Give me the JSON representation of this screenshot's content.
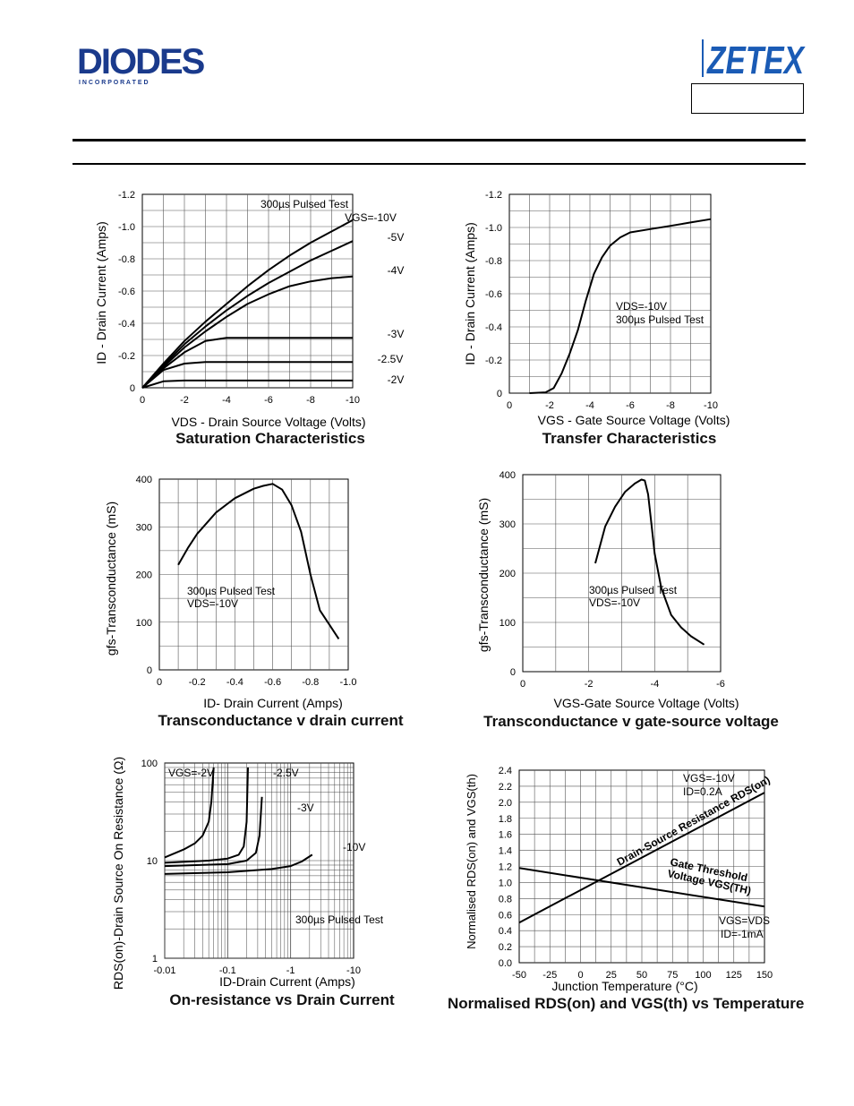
{
  "header": {
    "diodes_logo": "DIODES",
    "diodes_sub": "I N C O R P O R A T E D",
    "zetex_logo": "ZETEX"
  },
  "charts": {
    "saturation": {
      "title": "Saturation Characteristics",
      "xlabel": "VDS - Drain Source Voltage (Volts)",
      "ylabel": "ID - Drain Current (Amps)",
      "xticks": [
        "0",
        "-2",
        "-4",
        "-6",
        "-8",
        "-10"
      ],
      "yticks": [
        "0",
        "-0.2",
        "-0.4",
        "-0.6",
        "-0.8",
        "-1.0",
        "-1.2"
      ],
      "note1": "300µs Pulsed Test",
      "note2": "VGS=-10V",
      "curve_labels": [
        "-5V",
        "-4V",
        "-3V",
        "-2.5V",
        "-2V"
      ]
    },
    "transfer": {
      "title": "Transfer Characteristics",
      "xlabel": "VGS - Gate Source Voltage (Volts)",
      "ylabel": "ID - Drain Current (Amps)",
      "xticks": [
        "0",
        "-2",
        "-4",
        "-6",
        "-8",
        "-10"
      ],
      "yticks": [
        "0",
        "-0.2",
        "-0.4",
        "-0.6",
        "-0.8",
        "-1.0",
        "-1.2"
      ],
      "note1": "VDS=-10V",
      "note2": "300µs Pulsed Test"
    },
    "gfs_id": {
      "title": "Transconductance v drain current",
      "xlabel": "ID- Drain Current (Amps)",
      "ylabel": "gfs-Transconductance (mS)",
      "xticks": [
        "0",
        "-0.2",
        "-0.4",
        "-0.6",
        "-0.8",
        "-1.0"
      ],
      "yticks": [
        "0",
        "100",
        "200",
        "300",
        "400"
      ],
      "note1": "300µs Pulsed Test",
      "note2": "VDS=-10V"
    },
    "gfs_vgs": {
      "title": "Transconductance v gate-source voltage",
      "xlabel": "VGS-Gate Source Voltage (Volts)",
      "ylabel": "gfs-Transconductance (mS)",
      "xticks": [
        "0",
        "-2",
        "-4",
        "-6"
      ],
      "yticks": [
        "0",
        "100",
        "200",
        "300",
        "400"
      ],
      "note1": "300µs Pulsed Test",
      "note2": "VDS=-10V"
    },
    "rds": {
      "title": "On-resistance vs Drain Current",
      "xlabel": "ID-Drain Current (Amps)",
      "ylabel": "RDS(on)-Drain Source On Resistance  (Ω)",
      "xticks": [
        "-0.01",
        "-0.1",
        "-1",
        "-10"
      ],
      "yticks": [
        "1",
        "10",
        "100"
      ],
      "note1": "300µs Pulsed Test",
      "curve_labels": [
        "VGS=-2V",
        "-2.5V",
        "-3V",
        "-10V"
      ]
    },
    "temp": {
      "title": "Normalised RDS(on) and VGS(th) vs Temperature",
      "xlabel": "Junction Temperature (°C)",
      "ylabel": "Normalised RDS(on) and VGS(th)",
      "xticks": [
        "-50",
        "-25",
        "0",
        "25",
        "50",
        "75",
        "100",
        "125",
        "150"
      ],
      "yticks": [
        "0.0",
        "0.2",
        "0.4",
        "0.6",
        "0.8",
        "1.0",
        "1.2",
        "1.4",
        "1.6",
        "1.8",
        "2.0",
        "2.2",
        "2.4"
      ],
      "note1": "VGS=-10V",
      "note2": "ID=0.2A",
      "note3": "VGS=VDS",
      "note4": "ID=-1mA",
      "line1_label": "Drain-Source Resistance RDS(on)",
      "line2_label_a": "Gate Threshold",
      "line2_label_b": "Voltage VGS(TH)"
    }
  },
  "chart_data": [
    {
      "type": "line",
      "title": "Saturation Characteristics",
      "xlabel": "VDS - Drain Source Voltage (Volts)",
      "ylabel": "ID - Drain Current (Amps)",
      "xlim": [
        0,
        -10
      ],
      "ylim": [
        0,
        -1.2
      ],
      "grid": true,
      "series": [
        {
          "name": "VGS=-10V",
          "x": [
            0,
            -1,
            -2,
            -3,
            -4,
            -5,
            -6,
            -7,
            -8,
            -9,
            -10
          ],
          "y": [
            0,
            -0.15,
            -0.29,
            -0.41,
            -0.52,
            -0.63,
            -0.73,
            -0.82,
            -0.9,
            -0.97,
            -1.04
          ]
        },
        {
          "name": "-5V",
          "x": [
            0,
            -1,
            -2,
            -3,
            -4,
            -5,
            -6,
            -7,
            -8,
            -9,
            -10
          ],
          "y": [
            0,
            -0.14,
            -0.27,
            -0.38,
            -0.48,
            -0.57,
            -0.65,
            -0.72,
            -0.79,
            -0.85,
            -0.91
          ]
        },
        {
          "name": "-4V",
          "x": [
            0,
            -1,
            -2,
            -3,
            -4,
            -5,
            -6,
            -7,
            -8,
            -9,
            -10
          ],
          "y": [
            0,
            -0.13,
            -0.25,
            -0.35,
            -0.44,
            -0.52,
            -0.58,
            -0.63,
            -0.66,
            -0.68,
            -0.69
          ]
        },
        {
          "name": "-3V",
          "x": [
            0,
            -1,
            -2,
            -3,
            -4,
            -5,
            -6,
            -7,
            -8,
            -9,
            -10
          ],
          "y": [
            0,
            -0.12,
            -0.22,
            -0.29,
            -0.31,
            -0.31,
            -0.31,
            -0.31,
            -0.31,
            -0.31,
            -0.31
          ]
        },
        {
          "name": "-2.5V",
          "x": [
            0,
            -1,
            -2,
            -3,
            -4,
            -5,
            -6,
            -7,
            -8,
            -9,
            -10
          ],
          "y": [
            0,
            -0.11,
            -0.15,
            -0.16,
            -0.16,
            -0.16,
            -0.16,
            -0.16,
            -0.16,
            -0.16,
            -0.16
          ]
        },
        {
          "name": "-2V",
          "x": [
            0,
            -1,
            -2,
            -3,
            -4,
            -5,
            -6,
            -7,
            -8,
            -9,
            -10
          ],
          "y": [
            0,
            -0.04,
            -0.045,
            -0.045,
            -0.045,
            -0.045,
            -0.045,
            -0.045,
            -0.045,
            -0.045,
            -0.045
          ]
        }
      ]
    },
    {
      "type": "line",
      "title": "Transfer Characteristics",
      "xlabel": "VGS - Gate Source Voltage (Volts)",
      "ylabel": "ID - Drain Current (Amps)",
      "xlim": [
        0,
        -10
      ],
      "ylim": [
        0,
        -1.2
      ],
      "grid": true,
      "series": [
        {
          "x": [
            -1.0,
            -1.8,
            -2.2,
            -2.6,
            -3.0,
            -3.4,
            -3.8,
            -4.2,
            -4.6,
            -5.0,
            -5.5,
            -6.0,
            -7.0,
            -8.0,
            -9.0,
            -10.0
          ],
          "y": [
            0,
            -0.005,
            -0.03,
            -0.12,
            -0.24,
            -0.38,
            -0.56,
            -0.72,
            -0.82,
            -0.89,
            -0.94,
            -0.97,
            -0.99,
            -1.01,
            -1.03,
            -1.05
          ]
        }
      ]
    },
    {
      "type": "line",
      "title": "Transconductance v drain current",
      "xlabel": "ID- Drain Current (Amps)",
      "ylabel": "gfs-Transconductance (mS)",
      "xlim": [
        0,
        -1.0
      ],
      "ylim": [
        0,
        400
      ],
      "grid": true,
      "series": [
        {
          "x": [
            -0.1,
            -0.15,
            -0.2,
            -0.3,
            -0.4,
            -0.5,
            -0.55,
            -0.6,
            -0.65,
            -0.7,
            -0.75,
            -0.8,
            -0.85,
            -0.9,
            -0.95
          ],
          "y": [
            220,
            255,
            285,
            330,
            360,
            380,
            386,
            390,
            378,
            345,
            290,
            200,
            125,
            95,
            65
          ]
        }
      ]
    },
    {
      "type": "line",
      "title": "Transconductance v gate-source voltage",
      "xlabel": "VGS-Gate Source Voltage (Volts)",
      "ylabel": "gfs-Transconductance (mS)",
      "xlim": [
        0,
        -6
      ],
      "ylim": [
        0,
        400
      ],
      "grid": true,
      "series": [
        {
          "x": [
            -2.2,
            -2.5,
            -2.8,
            -3.1,
            -3.4,
            -3.6,
            -3.7,
            -3.8,
            -3.9,
            -4.0,
            -4.2,
            -4.5,
            -4.8,
            -5.1,
            -5.5
          ],
          "y": [
            220,
            295,
            335,
            365,
            382,
            390,
            388,
            360,
            300,
            240,
            170,
            115,
            90,
            72,
            55
          ]
        }
      ]
    },
    {
      "type": "line",
      "title": "On-resistance vs Drain Current",
      "xlabel": "ID-Drain Current (Amps)",
      "ylabel": "RDS(on)-Drain Source On Resistance  (Ω)",
      "xlim": [
        -0.01,
        -10
      ],
      "ylim": [
        1,
        100
      ],
      "log_x": true,
      "log_y": true,
      "grid": true,
      "series": [
        {
          "name": "VGS=-2V",
          "x": [
            -0.01,
            -0.02,
            -0.03,
            -0.04,
            -0.05,
            -0.055,
            -0.06
          ],
          "y": [
            10.8,
            13,
            15,
            18,
            25,
            40,
            90
          ]
        },
        {
          "name": "-2.5V",
          "x": [
            -0.01,
            -0.05,
            -0.1,
            -0.15,
            -0.18,
            -0.2,
            -0.21
          ],
          "y": [
            9.5,
            10,
            10.5,
            11.5,
            14,
            25,
            90
          ]
        },
        {
          "name": "-3V",
          "x": [
            -0.01,
            -0.1,
            -0.2,
            -0.28,
            -0.32,
            -0.35
          ],
          "y": [
            8.8,
            9.2,
            10,
            12,
            18,
            45
          ]
        },
        {
          "name": "-10V",
          "x": [
            -0.01,
            -0.1,
            -0.5,
            -1,
            -1.5,
            -2.2
          ],
          "y": [
            7.3,
            7.6,
            8.2,
            8.8,
            9.8,
            11.5
          ]
        }
      ]
    },
    {
      "type": "line",
      "title": "Normalised RDS(on) and VGS(th) vs Temperature",
      "xlabel": "Junction Temperature (°C)",
      "ylabel": "Normalised RDS(on) and VGS(th)",
      "xlim": [
        -50,
        150
      ],
      "ylim": [
        0.0,
        2.4
      ],
      "grid": true,
      "series": [
        {
          "name": "Drain-Source Resistance RDS(on)",
          "x": [
            -50,
            150
          ],
          "y": [
            0.5,
            2.12
          ]
        },
        {
          "name": "Gate Threshold Voltage VGS(TH)",
          "x": [
            -50,
            150
          ],
          "y": [
            1.18,
            0.7
          ]
        }
      ]
    }
  ]
}
